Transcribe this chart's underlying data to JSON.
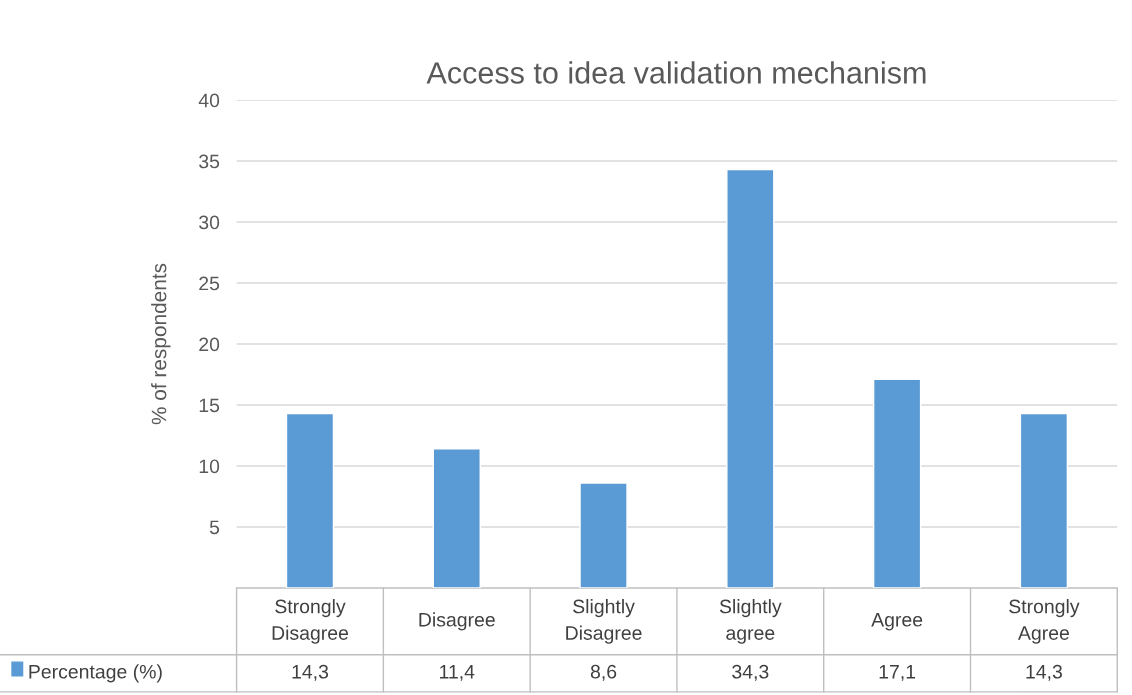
{
  "chart_data": {
    "type": "bar",
    "title": "Access to idea validation mechanism",
    "ylabel": "% of respondents",
    "categories": [
      "Strongly\nDisagree",
      "Disagree",
      "Slightly\nDisagree",
      "Slightly\nagree",
      "Agree",
      "Strongly\nAgree"
    ],
    "series": [
      {
        "name": "Percentage (%)",
        "color": "#5b9bd5",
        "values": [
          14.3,
          11.4,
          8.6,
          34.3,
          17.1,
          14.3
        ],
        "value_labels": [
          "14,3",
          "11,4",
          "8,6",
          "34,3",
          "17,1",
          "14,3"
        ]
      }
    ],
    "ylim": [
      0,
      40
    ],
    "yticks": [
      5,
      10,
      15,
      20,
      25,
      30,
      35,
      40
    ],
    "grid": "y",
    "legend": "bottom"
  }
}
